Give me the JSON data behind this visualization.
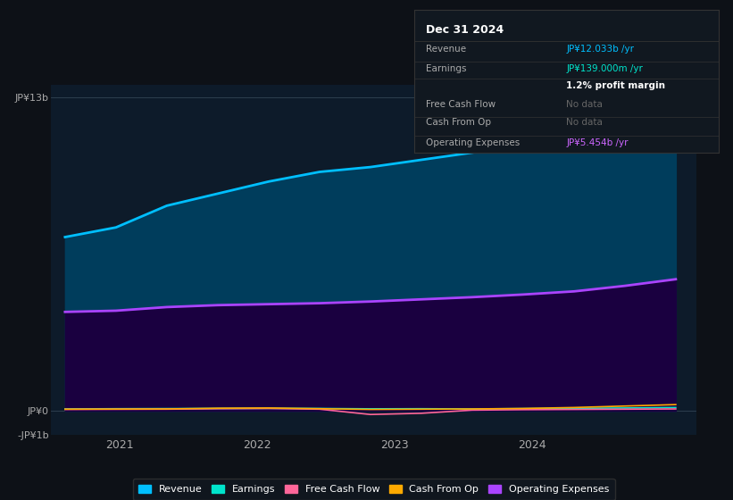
{
  "bg_color": "#0d1117",
  "plot_bg_color": "#0d1b2a",
  "title": "Dec 31 2024",
  "info_box_rows": [
    {
      "label": "Revenue",
      "value": "JP¥12.033b /yr",
      "value_color": "#00bfff"
    },
    {
      "label": "Earnings",
      "value": "JP¥139.000m /yr",
      "value_color": "#00e5cc"
    },
    {
      "label": "",
      "value": "1.2% profit margin",
      "value_color": "#ffffff"
    },
    {
      "label": "Free Cash Flow",
      "value": "No data",
      "value_color": "#666666"
    },
    {
      "label": "Cash From Op",
      "value": "No data",
      "value_color": "#666666"
    },
    {
      "label": "Operating Expenses",
      "value": "JP¥5.454b /yr",
      "value_color": "#cc66ff"
    }
  ],
  "ylim": [
    -1000000000,
    13500000000
  ],
  "yticks_labels": [
    "JP¥13b",
    "JP¥0",
    "-JP¥1b"
  ],
  "yticks_values": [
    13000000000,
    0,
    -1000000000
  ],
  "xlim_start": 2020.5,
  "xlim_end": 2025.2,
  "xticks": [
    2021,
    2022,
    2023,
    2024
  ],
  "year_start": 2020.6,
  "year_end": 2025.05,
  "revenue_values": [
    7200000000,
    7600000000,
    8500000000,
    9000000000,
    9500000000,
    9900000000,
    10100000000,
    10400000000,
    10700000000,
    11000000000,
    11300000000,
    11700000000,
    12033000000
  ],
  "revenue_color": "#00bfff",
  "revenue_fill": "#003d5c",
  "opex_values": [
    4100000000,
    4150000000,
    4300000000,
    4380000000,
    4420000000,
    4460000000,
    4530000000,
    4620000000,
    4710000000,
    4820000000,
    4950000000,
    5180000000,
    5454000000
  ],
  "opex_color": "#aa44ff",
  "opex_fill": "#1a0040",
  "earnings_values": [
    80000000,
    90000000,
    95000000,
    100000000,
    105000000,
    100000000,
    85000000,
    90000000,
    80000000,
    95000000,
    105000000,
    120000000,
    139000000
  ],
  "earnings_color": "#00e5cc",
  "fcf_values": [
    60000000,
    65000000,
    70000000,
    90000000,
    100000000,
    70000000,
    -150000000,
    -100000000,
    30000000,
    50000000,
    60000000,
    70000000,
    80000000
  ],
  "fcf_color": "#ff6699",
  "cfo_values": [
    70000000,
    75000000,
    80000000,
    110000000,
    120000000,
    90000000,
    60000000,
    70000000,
    80000000,
    100000000,
    140000000,
    200000000,
    260000000
  ],
  "cfo_color": "#ffaa00",
  "legend": [
    {
      "label": "Revenue",
      "color": "#00bfff"
    },
    {
      "label": "Earnings",
      "color": "#00e5cc"
    },
    {
      "label": "Free Cash Flow",
      "color": "#ff6699"
    },
    {
      "label": "Cash From Op",
      "color": "#ffaa00"
    },
    {
      "label": "Operating Expenses",
      "color": "#aa44ff"
    }
  ]
}
